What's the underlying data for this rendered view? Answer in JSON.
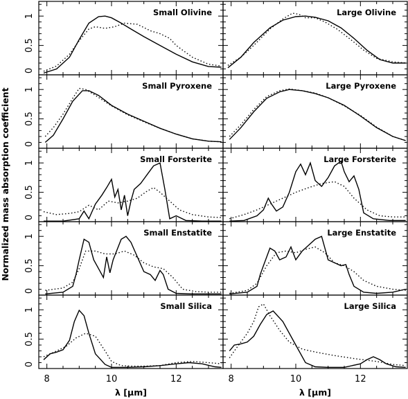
{
  "figure": {
    "ylabel": "Normalized mass absorption coefficient",
    "xlabel": "λ [μm]"
  },
  "chart_data": {
    "type": "line",
    "xlim": [
      7.75,
      13.45
    ],
    "ylim": [
      0,
      1.25
    ],
    "xticks": [
      8,
      10,
      12
    ],
    "yticks": [
      0,
      0.5,
      1
    ],
    "ytick_labels": [
      "0",
      "0.5",
      "1"
    ],
    "grid": false,
    "xlabel": "λ [μm]",
    "ylabel": "Normalized mass absorption coefficient",
    "panels": [
      {
        "title": "Small Olivine",
        "row": 0,
        "col": 0,
        "show_yticks": true,
        "show_xticks": false,
        "series": [
          {
            "style": "solid",
            "x": [
              7.9,
              8.3,
              8.7,
              9.0,
              9.3,
              9.6,
              9.8,
              10.0,
              10.3,
              10.6,
              11.0,
              11.5,
              12.0,
              12.5,
              13.0,
              13.4
            ],
            "y": [
              0.03,
              0.1,
              0.3,
              0.6,
              0.88,
              0.99,
              1.0,
              0.97,
              0.88,
              0.78,
              0.65,
              0.5,
              0.35,
              0.22,
              0.14,
              0.13
            ]
          },
          {
            "style": "dotted",
            "x": [
              7.9,
              8.3,
              8.7,
              9.0,
              9.3,
              9.5,
              9.8,
              10.1,
              10.4,
              10.8,
              11.2,
              11.5,
              11.8,
              12.0,
              12.5,
              13.0,
              13.4
            ],
            "y": [
              0.06,
              0.15,
              0.35,
              0.58,
              0.78,
              0.82,
              0.79,
              0.82,
              0.88,
              0.86,
              0.75,
              0.7,
              0.62,
              0.5,
              0.3,
              0.18,
              0.15
            ]
          }
        ]
      },
      {
        "title": "Large Olivine",
        "row": 0,
        "col": 1,
        "show_yticks": false,
        "show_xticks": false,
        "series": [
          {
            "style": "solid",
            "x": [
              7.9,
              8.3,
              8.7,
              9.2,
              9.6,
              10.0,
              10.3,
              10.6,
              11.0,
              11.4,
              11.8,
              12.2,
              12.6,
              13.0,
              13.4
            ],
            "y": [
              0.12,
              0.3,
              0.55,
              0.8,
              0.93,
              0.99,
              1.0,
              0.98,
              0.92,
              0.8,
              0.62,
              0.42,
              0.26,
              0.2,
              0.2
            ]
          },
          {
            "style": "dotted",
            "x": [
              7.9,
              8.3,
              8.7,
              9.2,
              9.6,
              9.9,
              10.1,
              10.3,
              10.6,
              10.9,
              11.3,
              11.7,
              12.1,
              12.5,
              13.0,
              13.4
            ],
            "y": [
              0.16,
              0.3,
              0.5,
              0.78,
              0.95,
              1.05,
              1.03,
              0.97,
              0.97,
              0.9,
              0.77,
              0.6,
              0.42,
              0.28,
              0.22,
              0.2
            ]
          }
        ]
      },
      {
        "title": "Small Pyroxene",
        "row": 1,
        "col": 0,
        "show_yticks": true,
        "show_xticks": false,
        "series": [
          {
            "style": "solid",
            "x": [
              7.95,
              8.2,
              8.5,
              8.8,
              9.1,
              9.3,
              9.6,
              10.0,
              10.5,
              11.0,
              11.5,
              12.0,
              12.5,
              13.0,
              13.4
            ],
            "y": [
              0.1,
              0.22,
              0.5,
              0.8,
              0.98,
              0.98,
              0.9,
              0.73,
              0.58,
              0.46,
              0.34,
              0.24,
              0.16,
              0.12,
              0.11
            ]
          },
          {
            "style": "dotted",
            "x": [
              7.95,
              8.2,
              8.5,
              8.8,
              9.0,
              9.2,
              9.5,
              10.0,
              10.5,
              11.0,
              11.5,
              12.0,
              12.5,
              13.0,
              13.4
            ],
            "y": [
              0.2,
              0.35,
              0.58,
              0.85,
              1.02,
              1.0,
              0.9,
              0.72,
              0.57,
              0.45,
              0.34,
              0.24,
              0.16,
              0.12,
              0.11
            ]
          }
        ]
      },
      {
        "title": "Large Pyroxene",
        "row": 1,
        "col": 1,
        "show_yticks": false,
        "show_xticks": false,
        "series": [
          {
            "style": "solid",
            "x": [
              7.95,
              8.3,
              8.7,
              9.1,
              9.5,
              9.8,
              10.2,
              10.6,
              11.0,
              11.5,
              12.0,
              12.5,
              13.0,
              13.4
            ],
            "y": [
              0.15,
              0.35,
              0.62,
              0.85,
              0.96,
              1.0,
              0.98,
              0.93,
              0.86,
              0.73,
              0.55,
              0.35,
              0.2,
              0.13
            ]
          },
          {
            "style": "dotted",
            "x": [
              7.95,
              8.3,
              8.7,
              9.1,
              9.5,
              9.8,
              10.2,
              10.6,
              11.0,
              11.5,
              12.0,
              12.5,
              13.0,
              13.4
            ],
            "y": [
              0.2,
              0.4,
              0.66,
              0.88,
              0.98,
              1.01,
              0.98,
              0.94,
              0.86,
              0.72,
              0.56,
              0.36,
              0.2,
              0.13
            ]
          }
        ]
      },
      {
        "title": "Small Forsterite",
        "row": 2,
        "col": 0,
        "show_yticks": true,
        "show_xticks": false,
        "series": [
          {
            "style": "solid",
            "x": [
              7.9,
              8.5,
              9.0,
              9.15,
              9.3,
              9.5,
              9.7,
              9.85,
              10.0,
              10.1,
              10.2,
              10.3,
              10.4,
              10.5,
              10.6,
              10.7,
              10.9,
              11.1,
              11.3,
              11.5,
              11.65,
              11.8,
              12.0,
              12.3,
              12.8,
              13.4
            ],
            "y": [
              0.01,
              0.01,
              0.05,
              0.18,
              0.05,
              0.3,
              0.45,
              0.58,
              0.72,
              0.42,
              0.55,
              0.2,
              0.45,
              0.1,
              0.35,
              0.55,
              0.65,
              0.8,
              0.95,
              1.0,
              0.55,
              0.05,
              0.1,
              0.02,
              0.01,
              0.01
            ]
          },
          {
            "style": "dotted",
            "x": [
              7.9,
              8.3,
              8.7,
              9.0,
              9.3,
              9.6,
              9.9,
              10.2,
              10.5,
              10.8,
              11.1,
              11.3,
              11.5,
              11.8,
              12.1,
              12.5,
              13.0,
              13.4
            ],
            "y": [
              0.17,
              0.12,
              0.14,
              0.17,
              0.28,
              0.2,
              0.35,
              0.32,
              0.35,
              0.4,
              0.52,
              0.58,
              0.5,
              0.35,
              0.2,
              0.12,
              0.08,
              0.07
            ]
          }
        ]
      },
      {
        "title": "Large Forsterite",
        "row": 2,
        "col": 1,
        "show_yticks": false,
        "show_xticks": false,
        "series": [
          {
            "style": "solid",
            "x": [
              7.95,
              8.4,
              8.8,
              9.0,
              9.15,
              9.25,
              9.4,
              9.6,
              9.8,
              10.0,
              10.15,
              10.3,
              10.45,
              10.6,
              10.8,
              11.0,
              11.2,
              11.4,
              11.5,
              11.65,
              11.8,
              11.95,
              12.1,
              12.4,
              12.9,
              13.4
            ],
            "y": [
              0.01,
              0.02,
              0.1,
              0.2,
              0.4,
              0.3,
              0.18,
              0.25,
              0.5,
              0.85,
              0.98,
              0.8,
              1.0,
              0.7,
              0.6,
              0.75,
              0.95,
              1.03,
              0.85,
              0.68,
              0.78,
              0.55,
              0.15,
              0.05,
              0.02,
              0.02
            ]
          },
          {
            "style": "dotted",
            "x": [
              7.95,
              8.4,
              8.8,
              9.2,
              9.6,
              10.0,
              10.4,
              10.8,
              11.2,
              11.5,
              11.8,
              12.2,
              12.6,
              13.0,
              13.4
            ],
            "y": [
              0.05,
              0.12,
              0.2,
              0.3,
              0.4,
              0.5,
              0.58,
              0.65,
              0.68,
              0.6,
              0.4,
              0.2,
              0.1,
              0.08,
              0.08
            ]
          }
        ]
      },
      {
        "title": "Small Enstatite",
        "row": 3,
        "col": 0,
        "show_yticks": true,
        "show_xticks": false,
        "series": [
          {
            "style": "solid",
            "x": [
              7.95,
              8.5,
              8.8,
              8.9,
              9.0,
              9.15,
              9.3,
              9.45,
              9.6,
              9.75,
              9.85,
              9.95,
              10.05,
              10.3,
              10.45,
              10.6,
              10.8,
              11.0,
              11.2,
              11.35,
              11.5,
              11.6,
              11.75,
              12.0,
              12.5,
              13.4
            ],
            "y": [
              0.02,
              0.05,
              0.15,
              0.35,
              0.6,
              0.95,
              0.9,
              0.6,
              0.45,
              0.3,
              0.65,
              0.38,
              0.6,
              0.95,
              1.0,
              0.9,
              0.65,
              0.4,
              0.35,
              0.25,
              0.42,
              0.35,
              0.1,
              0.03,
              0.02,
              0.02
            ]
          },
          {
            "style": "dotted",
            "x": [
              7.95,
              8.5,
              8.8,
              9.0,
              9.2,
              9.5,
              9.8,
              10.1,
              10.4,
              10.7,
              11.0,
              11.3,
              11.6,
              11.9,
              12.2,
              12.6,
              13.0,
              13.4
            ],
            "y": [
              0.08,
              0.12,
              0.22,
              0.45,
              0.75,
              0.75,
              0.7,
              0.7,
              0.75,
              0.68,
              0.55,
              0.48,
              0.45,
              0.3,
              0.1,
              0.06,
              0.05,
              0.05
            ]
          }
        ]
      },
      {
        "title": "Large Enstatite",
        "row": 3,
        "col": 1,
        "show_yticks": false,
        "show_xticks": false,
        "series": [
          {
            "style": "solid",
            "x": [
              7.95,
              8.5,
              8.8,
              8.9,
              9.0,
              9.2,
              9.35,
              9.5,
              9.7,
              9.85,
              10.0,
              10.2,
              10.4,
              10.6,
              10.8,
              11.0,
              11.2,
              11.4,
              11.55,
              11.65,
              11.8,
              12.1,
              12.5,
              13.0,
              13.4
            ],
            "y": [
              0.02,
              0.05,
              0.15,
              0.35,
              0.5,
              0.8,
              0.75,
              0.6,
              0.65,
              0.82,
              0.6,
              0.75,
              0.85,
              0.95,
              1.0,
              0.6,
              0.55,
              0.5,
              0.52,
              0.35,
              0.15,
              0.05,
              0.03,
              0.05,
              0.1
            ]
          },
          {
            "style": "dotted",
            "x": [
              7.95,
              8.5,
              8.8,
              9.1,
              9.4,
              9.7,
              10.0,
              10.3,
              10.6,
              10.9,
              11.2,
              11.5,
              11.8,
              12.1,
              12.5,
              13.0,
              13.4
            ],
            "y": [
              0.03,
              0.08,
              0.2,
              0.5,
              0.72,
              0.75,
              0.72,
              0.78,
              0.82,
              0.72,
              0.55,
              0.5,
              0.4,
              0.25,
              0.15,
              0.1,
              0.08
            ]
          }
        ]
      },
      {
        "title": "Small Silica",
        "row": 4,
        "col": 0,
        "show_yticks": true,
        "show_xticks": true,
        "series": [
          {
            "style": "solid",
            "x": [
              7.9,
              8.1,
              8.3,
              8.5,
              8.7,
              8.85,
              9.0,
              9.15,
              9.3,
              9.5,
              9.8,
              10.0,
              10.5,
              11.0,
              11.5,
              12.0,
              12.4,
              12.8,
              13.2,
              13.4
            ],
            "y": [
              0.15,
              0.25,
              0.28,
              0.32,
              0.48,
              0.8,
              0.99,
              0.9,
              0.6,
              0.25,
              0.07,
              0.02,
              0.02,
              0.03,
              0.05,
              0.08,
              0.1,
              0.08,
              0.03,
              0.02
            ]
          },
          {
            "style": "dotted",
            "x": [
              7.9,
              8.1,
              8.3,
              8.6,
              8.9,
              9.2,
              9.5,
              9.8,
              10.0,
              10.3,
              10.6,
              11.0,
              11.5,
              12.0,
              12.5,
              13.0,
              13.4
            ],
            "y": [
              0.2,
              0.25,
              0.3,
              0.38,
              0.52,
              0.6,
              0.55,
              0.3,
              0.12,
              0.05,
              0.04,
              0.04,
              0.05,
              0.1,
              0.12,
              0.1,
              0.08
            ]
          }
        ]
      },
      {
        "title": "Large Silica",
        "row": 4,
        "col": 1,
        "show_yticks": false,
        "show_xticks": true,
        "series": [
          {
            "style": "solid",
            "x": [
              7.95,
              8.1,
              8.3,
              8.5,
              8.7,
              8.9,
              9.1,
              9.3,
              9.6,
              10.0,
              10.3,
              10.6,
              11.0,
              11.5,
              12.0,
              12.2,
              12.4,
              12.6,
              12.8,
              13.1,
              13.4
            ],
            "y": [
              0.3,
              0.4,
              0.42,
              0.45,
              0.55,
              0.75,
              0.92,
              0.98,
              0.8,
              0.4,
              0.1,
              0.03,
              0.02,
              0.02,
              0.08,
              0.15,
              0.2,
              0.15,
              0.08,
              0.03,
              0.02
            ]
          },
          {
            "style": "dotted",
            "x": [
              7.95,
              8.1,
              8.3,
              8.5,
              8.7,
              8.85,
              9.0,
              9.2,
              9.5,
              9.8,
              10.2,
              10.7,
              11.2,
              11.8,
              12.5,
              13.0,
              13.4
            ],
            "y": [
              0.18,
              0.3,
              0.45,
              0.6,
              0.8,
              1.05,
              1.1,
              0.9,
              0.65,
              0.45,
              0.33,
              0.27,
              0.22,
              0.17,
              0.12,
              0.07,
              0.05
            ]
          }
        ]
      }
    ]
  }
}
